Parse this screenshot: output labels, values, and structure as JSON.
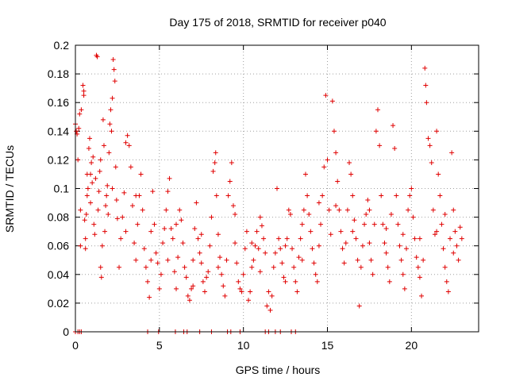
{
  "chart_data": {
    "type": "scatter",
    "title": "Day 175 of 2018, SRMTID for receiver p040",
    "xlabel": "GPS time / hours",
    "ylabel": "SRMTID / TECUs",
    "xlim": [
      0,
      24
    ],
    "ylim": [
      0,
      0.2
    ],
    "xticks": [
      {
        "value": 0,
        "label": "0"
      },
      {
        "value": 5,
        "label": "5"
      },
      {
        "value": 10,
        "label": "10"
      },
      {
        "value": 15,
        "label": "15"
      },
      {
        "value": 20,
        "label": "20"
      }
    ],
    "yticks": [
      {
        "value": 0,
        "label": "0"
      },
      {
        "value": 0.02,
        "label": "0.02"
      },
      {
        "value": 0.04,
        "label": "0.04"
      },
      {
        "value": 0.06,
        "label": "0.06"
      },
      {
        "value": 0.08,
        "label": "0.08"
      },
      {
        "value": 0.1,
        "label": "0.1"
      },
      {
        "value": 0.12,
        "label": "0.12"
      },
      {
        "value": 0.14,
        "label": "0.14"
      },
      {
        "value": 0.16,
        "label": "0.16"
      },
      {
        "value": 0.18,
        "label": "0.18"
      },
      {
        "value": 0.2,
        "label": "0.2"
      }
    ],
    "grid": true,
    "marker": "+",
    "color": "#e00000",
    "series": [
      {
        "name": "SRMTID",
        "points": [
          [
            0.0,
            0.145
          ],
          [
            0.05,
            0.14
          ],
          [
            0.1,
            0.138
          ],
          [
            0.15,
            0.12
          ],
          [
            0.2,
            0.142
          ],
          [
            0.25,
            0.152
          ],
          [
            0.3,
            0.06
          ],
          [
            0.35,
            0.155
          ],
          [
            0.45,
            0.172
          ],
          [
            0.5,
            0.165
          ],
          [
            0.5,
            0.168
          ],
          [
            0.55,
            0.078
          ],
          [
            0.6,
            0.065
          ],
          [
            0.6,
            0.058
          ],
          [
            0.65,
            0.082
          ],
          [
            0.7,
            0.095
          ],
          [
            0.75,
            0.1
          ],
          [
            0.8,
            0.128
          ],
          [
            0.85,
            0.135
          ],
          [
            0.9,
            0.11
          ],
          [
            0.9,
            0.09
          ],
          [
            0.95,
            0.118
          ],
          [
            1.0,
            0.104
          ],
          [
            1.05,
            0.122
          ],
          [
            1.1,
            0.075
          ],
          [
            1.15,
            0.068
          ],
          [
            1.2,
            0.107
          ],
          [
            1.25,
            0.193
          ],
          [
            1.3,
            0.192
          ],
          [
            1.35,
            0.085
          ],
          [
            1.4,
            0.098
          ],
          [
            1.45,
            0.112
          ],
          [
            1.5,
            0.045
          ],
          [
            1.55,
            0.038
          ],
          [
            1.6,
            0.06
          ],
          [
            1.65,
            0.148
          ],
          [
            1.7,
            0.13
          ],
          [
            1.75,
            0.07
          ],
          [
            1.8,
            0.088
          ],
          [
            1.85,
            0.095
          ],
          [
            1.9,
            0.102
          ],
          [
            1.95,
            0.082
          ],
          [
            2.0,
            0.125
          ],
          [
            2.05,
            0.145
          ],
          [
            2.1,
            0.155
          ],
          [
            2.15,
            0.14
          ],
          [
            2.2,
            0.163
          ],
          [
            2.25,
            0.19
          ],
          [
            2.3,
            0.183
          ],
          [
            2.35,
            0.175
          ],
          [
            2.4,
            0.115
          ],
          [
            2.45,
            0.092
          ],
          [
            2.5,
            0.079
          ],
          [
            2.6,
            0.045
          ],
          [
            2.7,
            0.065
          ],
          [
            2.8,
            0.08
          ],
          [
            2.9,
            0.097
          ],
          [
            3.0,
            0.132
          ],
          [
            3.1,
            0.137
          ],
          [
            3.2,
            0.13
          ],
          [
            3.3,
            0.115
          ],
          [
            3.4,
            0.088
          ],
          [
            3.5,
            0.062
          ],
          [
            3.6,
            0.05
          ],
          [
            3.7,
            0.075
          ],
          [
            3.8,
            0.095
          ],
          [
            3.9,
            0.11
          ],
          [
            4.0,
            0.085
          ],
          [
            4.1,
            0.058
          ],
          [
            4.2,
            0.045
          ],
          [
            4.3,
            0.035
          ],
          [
            4.4,
            0.024
          ],
          [
            4.5,
            0.07
          ],
          [
            4.6,
            0.098
          ],
          [
            4.7,
            0.075
          ],
          [
            4.8,
            0.055
          ],
          [
            4.9,
            0.048
          ],
          [
            5.0,
            0.03
          ],
          [
            5.1,
            0.04
          ],
          [
            5.2,
            0.062
          ],
          [
            5.3,
            0.072
          ],
          [
            5.4,
            0.085
          ],
          [
            5.5,
            0.098
          ],
          [
            5.6,
            0.107
          ],
          [
            5.7,
            0.072
          ],
          [
            5.8,
            0.065
          ],
          [
            5.9,
            0.042
          ],
          [
            6.0,
            0.03
          ],
          [
            6.1,
            0.052
          ],
          [
            6.2,
            0.085
          ],
          [
            6.3,
            0.078
          ],
          [
            6.4,
            0.062
          ],
          [
            6.5,
            0.045
          ],
          [
            6.6,
            0.038
          ],
          [
            6.7,
            0.025
          ],
          [
            6.8,
            0.022
          ],
          [
            6.9,
            0.03
          ],
          [
            7.0,
            0.05
          ],
          [
            7.1,
            0.072
          ],
          [
            7.2,
            0.09
          ],
          [
            7.3,
            0.065
          ],
          [
            7.4,
            0.055
          ],
          [
            7.5,
            0.048
          ],
          [
            7.6,
            0.035
          ],
          [
            7.7,
            0.028
          ],
          [
            7.8,
            0.038
          ],
          [
            7.9,
            0.042
          ],
          [
            8.0,
            0.06
          ],
          [
            8.1,
            0.08
          ],
          [
            8.2,
            0.112
          ],
          [
            8.3,
            0.118
          ],
          [
            8.35,
            0.125
          ],
          [
            8.4,
            0.095
          ],
          [
            8.5,
            0.068
          ],
          [
            8.6,
            0.052
          ],
          [
            8.7,
            0.04
          ],
          [
            8.8,
            0.032
          ],
          [
            8.9,
            0.025
          ],
          [
            9.0,
            0.05
          ],
          [
            9.1,
            0.095
          ],
          [
            9.2,
            0.105
          ],
          [
            9.3,
            0.118
          ],
          [
            9.4,
            0.088
          ],
          [
            9.5,
            0.062
          ],
          [
            9.6,
            0.048
          ],
          [
            9.7,
            0.035
          ],
          [
            9.8,
            0.03
          ],
          [
            9.9,
            0.028
          ],
          [
            10.0,
            0.04
          ],
          [
            10.1,
            0.058
          ],
          [
            10.2,
            0.07
          ],
          [
            10.3,
            0.022
          ],
          [
            10.4,
            0.028
          ],
          [
            10.5,
            0.045
          ],
          [
            10.6,
            0.05
          ],
          [
            10.7,
            0.06
          ],
          [
            10.8,
            0.07
          ],
          [
            10.9,
            0.058
          ],
          [
            11.0,
            0.08
          ],
          [
            11.1,
            0.074
          ],
          [
            11.2,
            0.065
          ],
          [
            11.3,
            0.055
          ],
          [
            11.4,
            0.018
          ],
          [
            11.5,
            0.028
          ],
          [
            11.6,
            0.015
          ],
          [
            11.7,
            0.025
          ],
          [
            11.8,
            0.045
          ],
          [
            11.9,
            0.055
          ],
          [
            12.0,
            0.1
          ],
          [
            12.1,
            0.065
          ],
          [
            12.2,
            0.058
          ],
          [
            12.3,
            0.048
          ],
          [
            12.4,
            0.038
          ],
          [
            12.5,
            0.035
          ],
          [
            12.6,
            0.065
          ],
          [
            12.7,
            0.085
          ],
          [
            12.8,
            0.082
          ],
          [
            12.9,
            0.058
          ],
          [
            13.0,
            0.045
          ],
          [
            13.1,
            0.035
          ],
          [
            13.2,
            0.028
          ],
          [
            13.3,
            0.052
          ],
          [
            13.4,
            0.065
          ],
          [
            13.5,
            0.075
          ],
          [
            13.6,
            0.085
          ],
          [
            13.7,
            0.11
          ],
          [
            13.8,
            0.095
          ],
          [
            13.9,
            0.082
          ],
          [
            14.0,
            0.07
          ],
          [
            14.1,
            0.058
          ],
          [
            14.2,
            0.048
          ],
          [
            14.3,
            0.04
          ],
          [
            14.4,
            0.035
          ],
          [
            14.5,
            0.06
          ],
          [
            14.6,
            0.075
          ],
          [
            14.7,
            0.095
          ],
          [
            14.8,
            0.115
          ],
          [
            14.9,
            0.165
          ],
          [
            15.0,
            0.12
          ],
          [
            15.1,
            0.085
          ],
          [
            15.2,
            0.068
          ],
          [
            15.3,
            0.161
          ],
          [
            15.4,
            0.14
          ],
          [
            15.5,
            0.125
          ],
          [
            15.6,
            0.105
          ],
          [
            15.7,
            0.085
          ],
          [
            15.8,
            0.07
          ],
          [
            15.9,
            0.058
          ],
          [
            16.0,
            0.048
          ],
          [
            16.1,
            0.062
          ],
          [
            16.2,
            0.085
          ],
          [
            16.3,
            0.118
          ],
          [
            16.4,
            0.11
          ],
          [
            16.5,
            0.095
          ],
          [
            16.6,
            0.078
          ],
          [
            16.7,
            0.065
          ],
          [
            16.8,
            0.05
          ],
          [
            16.9,
            0.018
          ],
          [
            17.0,
            0.045
          ],
          [
            17.1,
            0.06
          ],
          [
            17.2,
            0.075
          ],
          [
            17.3,
            0.082
          ],
          [
            17.4,
            0.092
          ],
          [
            17.5,
            0.062
          ],
          [
            17.6,
            0.05
          ],
          [
            17.7,
            0.04
          ],
          [
            17.8,
            0.075
          ],
          [
            17.9,
            0.14
          ],
          [
            18.0,
            0.155
          ],
          [
            18.1,
            0.13
          ],
          [
            18.2,
            0.095
          ],
          [
            18.3,
            0.075
          ],
          [
            18.4,
            0.062
          ],
          [
            18.5,
            0.055
          ],
          [
            18.6,
            0.045
          ],
          [
            18.7,
            0.035
          ],
          [
            18.8,
            0.082
          ],
          [
            18.9,
            0.144
          ],
          [
            19.0,
            0.128
          ],
          [
            19.1,
            0.095
          ],
          [
            19.2,
            0.075
          ],
          [
            19.3,
            0.06
          ],
          [
            19.4,
            0.05
          ],
          [
            19.5,
            0.04
          ],
          [
            19.6,
            0.03
          ],
          [
            19.7,
            0.058
          ],
          [
            19.8,
            0.085
          ],
          [
            19.9,
            0.095
          ],
          [
            20.0,
            0.1
          ],
          [
            20.1,
            0.08
          ],
          [
            20.2,
            0.065
          ],
          [
            20.3,
            0.052
          ],
          [
            20.4,
            0.045
          ],
          [
            20.5,
            0.038
          ],
          [
            20.6,
            0.025
          ],
          [
            20.7,
            0.05
          ],
          [
            20.8,
            0.184
          ],
          [
            20.85,
            0.172
          ],
          [
            20.9,
            0.16
          ],
          [
            21.0,
            0.135
          ],
          [
            21.1,
            0.13
          ],
          [
            21.2,
            0.118
          ],
          [
            21.3,
            0.085
          ],
          [
            21.4,
            0.068
          ],
          [
            21.5,
            0.14
          ],
          [
            21.6,
            0.11
          ],
          [
            21.7,
            0.095
          ],
          [
            21.8,
            0.075
          ],
          [
            21.9,
            0.058
          ],
          [
            22.0,
            0.045
          ],
          [
            22.1,
            0.035
          ],
          [
            22.2,
            0.028
          ],
          [
            22.3,
            0.065
          ],
          [
            22.4,
            0.125
          ],
          [
            22.5,
            0.085
          ],
          [
            22.6,
            0.07
          ],
          [
            22.7,
            0.06
          ],
          [
            22.8,
            0.05
          ],
          [
            22.9,
            0.073
          ],
          [
            23.0,
            0.065
          ],
          [
            0.3,
            0.085
          ],
          [
            0.7,
            0.11
          ],
          [
            1.5,
            0.12
          ],
          [
            2.2,
            0.1
          ],
          [
            3.0,
            0.07
          ],
          [
            3.6,
            0.095
          ],
          [
            4.5,
            0.05
          ],
          [
            5.5,
            0.05
          ],
          [
            6.0,
            0.075
          ],
          [
            7.0,
            0.032
          ],
          [
            7.5,
            0.068
          ],
          [
            8.5,
            0.045
          ],
          [
            9.5,
            0.082
          ],
          [
            10.5,
            0.062
          ],
          [
            11.0,
            0.042
          ],
          [
            12.5,
            0.06
          ],
          [
            13.5,
            0.05
          ],
          [
            14.5,
            0.09
          ],
          [
            15.5,
            0.088
          ],
          [
            16.5,
            0.07
          ],
          [
            17.5,
            0.085
          ],
          [
            18.5,
            0.072
          ],
          [
            19.5,
            0.068
          ],
          [
            20.5,
            0.065
          ],
          [
            21.5,
            0.07
          ],
          [
            22.0,
            0.082
          ],
          [
            22.5,
            0.055
          ],
          [
            0,
            0
          ],
          [
            0.15,
            0
          ],
          [
            0.25,
            0
          ],
          [
            0.35,
            0
          ],
          [
            4.3,
            0
          ],
          [
            4.95,
            0
          ],
          [
            5.95,
            0
          ],
          [
            6.45,
            0
          ],
          [
            6.65,
            0
          ],
          [
            7.4,
            0
          ],
          [
            8.1,
            0
          ],
          [
            9.05,
            0
          ],
          [
            9.25,
            0
          ],
          [
            9.8,
            0
          ],
          [
            11.3,
            0
          ],
          [
            11.5,
            0
          ],
          [
            11.9,
            0
          ],
          [
            12.2,
            0
          ],
          [
            12.85,
            0
          ],
          [
            13.1,
            0
          ]
        ]
      }
    ]
  }
}
